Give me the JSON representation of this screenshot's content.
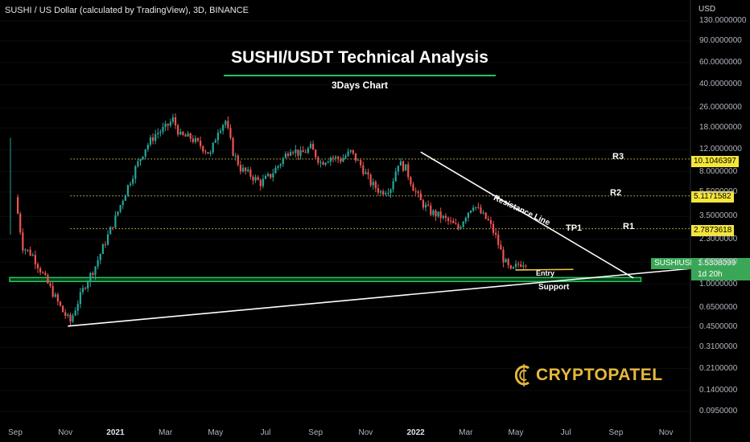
{
  "header": {
    "symbol_line": "SUSHI / US Dollar (calculated by TradingView), 3D, BINANCE",
    "currency": "USD"
  },
  "annotation": {
    "title": "SUSHI/USDT Technical Analysis",
    "subtitle": "3Days Chart",
    "resistance_line": "Resistance Line",
    "support": "Support",
    "entry": "Entry",
    "tp1": "TP1",
    "r1": "R1",
    "r2": "R2",
    "r3": "R3",
    "logo": "CRYPTOPATEL"
  },
  "price_tag": {
    "symbol": "SUSHIUSD",
    "price": "1.5308099",
    "countdown": "1d 20h"
  },
  "colors": {
    "up": "#26a69a",
    "down": "#ef5350",
    "level_tag": "#f5e63a",
    "support_zone": "#22c55e",
    "logo": "#e6b83c"
  },
  "chart_data": {
    "type": "candlestick",
    "scale": "log",
    "ylim": [
      0.085,
      170
    ],
    "y_ticks": [
      "130.0000000",
      "90.0000000",
      "60.0000000",
      "40.0000000",
      "26.0000000",
      "18.0000000",
      "12.0000000",
      "8.0000000",
      "5.5000000",
      "3.5000000",
      "2.3000000",
      "1.5000000",
      "1.0000000",
      "0.6500000",
      "0.4500000",
      "0.3100000",
      "0.2100000",
      "0.1400000",
      "0.0950000"
    ],
    "y_tick_values": [
      130,
      90,
      60,
      40,
      26,
      18,
      12,
      8,
      5.5,
      3.5,
      2.3,
      1.5,
      1.0,
      0.65,
      0.45,
      0.31,
      0.21,
      0.14,
      0.095
    ],
    "x_ticks": [
      {
        "label": "Sep",
        "bold": false
      },
      {
        "label": "Nov",
        "bold": false
      },
      {
        "label": "2021",
        "bold": true
      },
      {
        "label": "Mar",
        "bold": false
      },
      {
        "label": "May",
        "bold": false
      },
      {
        "label": "Jul",
        "bold": false
      },
      {
        "label": "Sep",
        "bold": false
      },
      {
        "label": "Nov",
        "bold": false
      },
      {
        "label": "2022",
        "bold": true
      },
      {
        "label": "Mar",
        "bold": false
      },
      {
        "label": "May",
        "bold": false
      },
      {
        "label": "Jul",
        "bold": false
      },
      {
        "label": "Sep",
        "bold": false
      },
      {
        "label": "Nov",
        "bold": false
      }
    ],
    "x_tick_month_index": [
      0,
      2,
      4,
      6,
      8,
      10,
      12,
      14,
      16,
      18,
      20,
      22,
      24,
      26
    ],
    "start_month": "2020-09",
    "last_bar_month": 20.4,
    "levels": [
      {
        "name": "R3",
        "value": 10.1046397,
        "label": "10.1046397"
      },
      {
        "name": "R2",
        "value": 5.1171582,
        "label": "5.1171582"
      },
      {
        "name": "R1",
        "value": 2.7873618,
        "label": "2.7873618"
      }
    ],
    "entry_level": 1.3,
    "support_zone": [
      1.05,
      1.13
    ],
    "resistance_line": {
      "from": [
        16.2,
        11.5
      ],
      "to": [
        24.7,
        1.12
      ]
    },
    "support_line": {
      "from": [
        2.1,
        0.46
      ],
      "to": [
        27.1,
        1.34
      ]
    },
    "price_path": [
      [
        0.0,
        5.0
      ],
      [
        0.3,
        2.0
      ],
      [
        0.7,
        1.7
      ],
      [
        1.1,
        1.2
      ],
      [
        1.5,
        0.85
      ],
      [
        1.9,
        0.6
      ],
      [
        2.2,
        0.5
      ],
      [
        2.5,
        0.72
      ],
      [
        2.8,
        1.0
      ],
      [
        3.2,
        1.4
      ],
      [
        3.6,
        2.2
      ],
      [
        4.0,
        3.4
      ],
      [
        4.4,
        5.5
      ],
      [
        4.8,
        8.5
      ],
      [
        5.2,
        12.5
      ],
      [
        5.6,
        16
      ],
      [
        6.0,
        18
      ],
      [
        6.3,
        21
      ],
      [
        6.6,
        15.5
      ],
      [
        7.0,
        15
      ],
      [
        7.4,
        13
      ],
      [
        7.8,
        11
      ],
      [
        8.1,
        17.5
      ],
      [
        8.4,
        20.5
      ],
      [
        8.7,
        11.5
      ],
      [
        9.0,
        8.5
      ],
      [
        9.4,
        7.5
      ],
      [
        9.8,
        6.5
      ],
      [
        10.2,
        7.5
      ],
      [
        10.6,
        9.5
      ],
      [
        11.0,
        12.5
      ],
      [
        11.4,
        11
      ],
      [
        11.8,
        12.5
      ],
      [
        12.2,
        9.5
      ],
      [
        12.6,
        10.5
      ],
      [
        13.0,
        10
      ],
      [
        13.4,
        11.5
      ],
      [
        13.8,
        9
      ],
      [
        14.2,
        6.5
      ],
      [
        14.6,
        5.5
      ],
      [
        15.0,
        6
      ],
      [
        15.3,
        9.5
      ],
      [
        15.6,
        8.5
      ],
      [
        15.9,
        6
      ],
      [
        16.2,
        4.6
      ],
      [
        16.6,
        3.8
      ],
      [
        17.0,
        3.5
      ],
      [
        17.4,
        3.1
      ],
      [
        17.7,
        2.8
      ],
      [
        18.0,
        3.6
      ],
      [
        18.3,
        4.4
      ],
      [
        18.6,
        3.7
      ],
      [
        18.9,
        3.2
      ],
      [
        19.2,
        2.4
      ],
      [
        19.5,
        1.6
      ],
      [
        19.8,
        1.25
      ],
      [
        20.1,
        1.45
      ],
      [
        20.4,
        1.53
      ]
    ]
  }
}
